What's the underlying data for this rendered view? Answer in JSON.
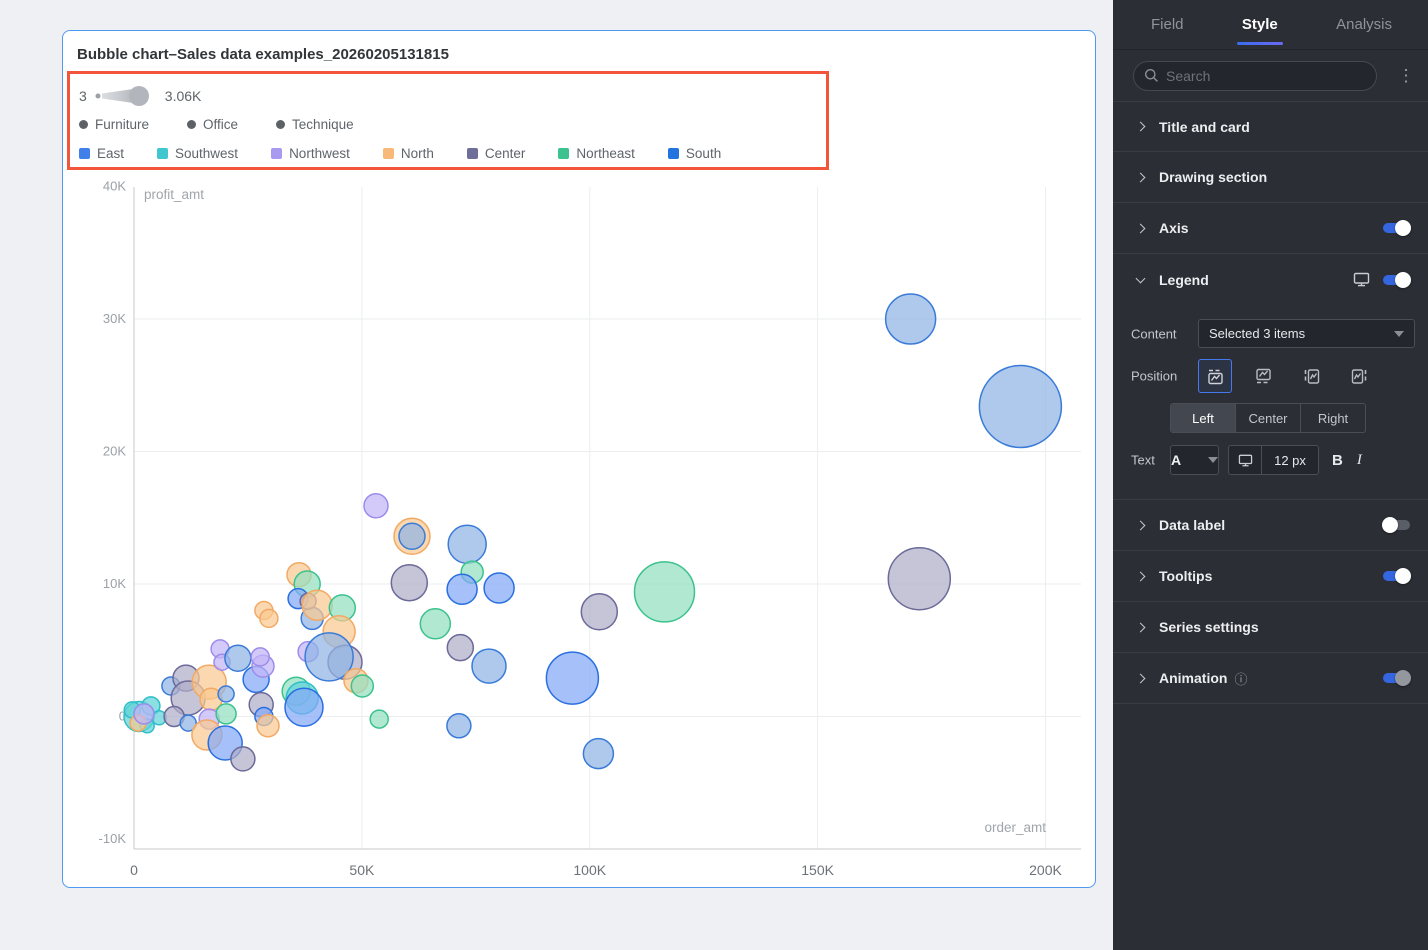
{
  "card": {
    "title": "Bubble chart–Sales data examples_20260205131815"
  },
  "annotation": {
    "color": "#f2543c"
  },
  "size_legend": {
    "min_label": "3",
    "max_label": "3.06K"
  },
  "shape_legend": {
    "dot_color": "#5d6166",
    "items": [
      {
        "label": "Furniture"
      },
      {
        "label": "Office"
      },
      {
        "label": "Technique"
      }
    ]
  },
  "chart_data": {
    "type": "scatter",
    "subtype": "bubble",
    "title": "Bubble chart–Sales data examples_20260205131815",
    "xlabel": "order_amt",
    "ylabel": "profit_amt",
    "x_range_k": [
      0,
      207
    ],
    "y_range_k": [
      -10,
      40
    ],
    "grid": true,
    "legend_position": "top-left",
    "size_scale": {
      "min_label": "3",
      "max_label": "3.06K"
    },
    "x_ticks": [
      {
        "label": "0",
        "v": 0
      },
      {
        "label": "50K",
        "v": 50
      },
      {
        "label": "100K",
        "v": 100
      },
      {
        "label": "150K",
        "v": 150
      },
      {
        "label": "200K",
        "v": 200
      }
    ],
    "y_ticks": [
      {
        "label": "40K",
        "v": 40
      },
      {
        "label": "30K",
        "v": 30
      },
      {
        "label": "20K",
        "v": 20
      },
      {
        "label": "10K",
        "v": 10
      },
      {
        "label": "0",
        "v": 0
      },
      {
        "label": "-10K",
        "v": -10
      }
    ],
    "regions": {
      "East": {
        "stroke": "#3a7bd8",
        "fill": "#8fb4e4"
      },
      "Southwest": {
        "stroke": "#2ebfc9",
        "fill": "#5fd2d8"
      },
      "Northwest": {
        "stroke": "#9d8cec",
        "fill": "#c3b5f7"
      },
      "North": {
        "stroke": "#f2a964",
        "fill": "#f9c990"
      },
      "Center": {
        "stroke": "#6b6a99",
        "fill": "#b0adc8"
      },
      "Northeast": {
        "stroke": "#3cc28e",
        "fill": "#93dfc0"
      },
      "South": {
        "stroke": "#2a6fe0",
        "fill": "#84a9f7"
      }
    },
    "legend_items": [
      {
        "label": "East",
        "color": "#4080e8"
      },
      {
        "label": "Southwest",
        "color": "#3fc6ce"
      },
      {
        "label": "Northwest",
        "color": "#a89af0"
      },
      {
        "label": "North",
        "color": "#f8b878"
      },
      {
        "label": "Center",
        "color": "#6f6e99"
      },
      {
        "label": "Northeast",
        "color": "#3cc28e"
      },
      {
        "label": "South",
        "color": "#2273df"
      }
    ],
    "points_format": [
      "order_amt_k",
      "profit_amt_k",
      "radius_px",
      "region"
    ],
    "points": [
      [
        1.1,
        0.0,
        15,
        "Southwest"
      ],
      [
        3.7,
        0.8,
        9,
        "Southwest"
      ],
      [
        5.5,
        -0.1,
        7,
        "Southwest"
      ],
      [
        2.9,
        -0.7,
        7,
        "Southwest"
      ],
      [
        -0.4,
        0.5,
        8,
        "Southwest"
      ],
      [
        0.9,
        -0.5,
        8,
        "North"
      ],
      [
        2.2,
        0.2,
        10,
        "Northwest"
      ],
      [
        8.1,
        2.3,
        9,
        "East"
      ],
      [
        11.4,
        2.9,
        13,
        "Center"
      ],
      [
        11.9,
        1.4,
        17,
        "Center"
      ],
      [
        16.5,
        2.6,
        17,
        "North"
      ],
      [
        16.9,
        1.3,
        11,
        "North"
      ],
      [
        20.2,
        1.7,
        8,
        "East"
      ],
      [
        8.8,
        0.0,
        10,
        "Center"
      ],
      [
        11.9,
        -0.5,
        8,
        "East"
      ],
      [
        16.5,
        -0.2,
        10,
        "Northwest"
      ],
      [
        20.2,
        0.2,
        10,
        "Northeast"
      ],
      [
        18.9,
        5.1,
        9,
        "Northwest"
      ],
      [
        19.3,
        4.1,
        8,
        "Northwest"
      ],
      [
        22.8,
        4.4,
        13,
        "East"
      ],
      [
        16.0,
        -1.4,
        15,
        "North"
      ],
      [
        20.0,
        -2.0,
        17,
        "South"
      ],
      [
        23.9,
        -3.2,
        12,
        "Center"
      ],
      [
        28.5,
        8.0,
        9,
        "North"
      ],
      [
        26.8,
        2.8,
        13,
        "South"
      ],
      [
        28.3,
        3.8,
        11,
        "Northwest"
      ],
      [
        27.7,
        4.5,
        9,
        "Northwest"
      ],
      [
        27.9,
        0.9,
        12,
        "Center"
      ],
      [
        28.5,
        0.0,
        9,
        "South"
      ],
      [
        29.4,
        -0.7,
        11,
        "North"
      ],
      [
        29.6,
        7.4,
        9,
        "North"
      ],
      [
        39.1,
        7.4,
        11,
        "East"
      ],
      [
        35.6,
        1.9,
        14,
        "Northeast"
      ],
      [
        36.9,
        1.4,
        16,
        "Southwest"
      ],
      [
        37.3,
        0.7,
        19,
        "South"
      ],
      [
        38.2,
        4.9,
        10,
        "Northwest"
      ],
      [
        36.2,
        10.7,
        12,
        "North"
      ],
      [
        38.0,
        10.0,
        13,
        "Northeast"
      ],
      [
        36.0,
        8.9,
        10,
        "South"
      ],
      [
        38.2,
        8.7,
        8,
        "Center"
      ],
      [
        40.2,
        8.4,
        15,
        "North"
      ],
      [
        45.7,
        8.2,
        13,
        "Northeast"
      ],
      [
        45.0,
        6.4,
        16,
        "North"
      ],
      [
        46.3,
        4.1,
        17,
        "Center"
      ],
      [
        42.8,
        4.5,
        24,
        "East"
      ],
      [
        48.7,
        2.7,
        12,
        "North"
      ],
      [
        50.1,
        2.3,
        11,
        "Northeast"
      ],
      [
        53.8,
        -0.2,
        9,
        "Northeast"
      ],
      [
        53.1,
        15.9,
        12,
        "Northwest"
      ],
      [
        61.0,
        13.6,
        18,
        "North"
      ],
      [
        61.0,
        13.6,
        13,
        "East"
      ],
      [
        73.1,
        13.0,
        19,
        "East"
      ],
      [
        74.2,
        10.9,
        11,
        "Northeast"
      ],
      [
        60.4,
        10.1,
        18,
        "Center"
      ],
      [
        72.0,
        9.6,
        15,
        "South"
      ],
      [
        80.1,
        9.7,
        15,
        "South"
      ],
      [
        66.1,
        7.0,
        15,
        "Northeast"
      ],
      [
        71.6,
        5.2,
        13,
        "Center"
      ],
      [
        77.9,
        3.8,
        17,
        "East"
      ],
      [
        96.2,
        2.9,
        26,
        "South"
      ],
      [
        71.3,
        -0.7,
        12,
        "East"
      ],
      [
        101.9,
        -2.8,
        15,
        "East"
      ],
      [
        102.1,
        7.9,
        18,
        "Center"
      ],
      [
        116.4,
        9.4,
        30,
        "Northeast"
      ],
      [
        170.4,
        30.0,
        25,
        "East"
      ],
      [
        194.5,
        23.4,
        41,
        "East"
      ],
      [
        172.3,
        10.4,
        31,
        "Center"
      ]
    ]
  },
  "panel": {
    "tabs": [
      {
        "label": "Field"
      },
      {
        "label": "Style"
      },
      {
        "label": "Analysis"
      }
    ],
    "search_placeholder": "Search",
    "sections": {
      "title_and_card": "Title and card",
      "drawing_section": "Drawing section",
      "axis": "Axis",
      "legend": "Legend",
      "data_label": "Data label",
      "tooltips": "Tooltips",
      "series_settings": "Series settings",
      "animation": "Animation"
    },
    "legend_settings": {
      "content_label": "Content",
      "content_value": "Selected 3 items",
      "position_label": "Position",
      "align_options": [
        "Left",
        "Center",
        "Right"
      ],
      "align_selected": "Left",
      "text_label": "Text",
      "font_color_letter": "A",
      "font_size": "12 px",
      "bold_label": "B",
      "italic_label": "I"
    },
    "accent_color": "#3566e0"
  }
}
